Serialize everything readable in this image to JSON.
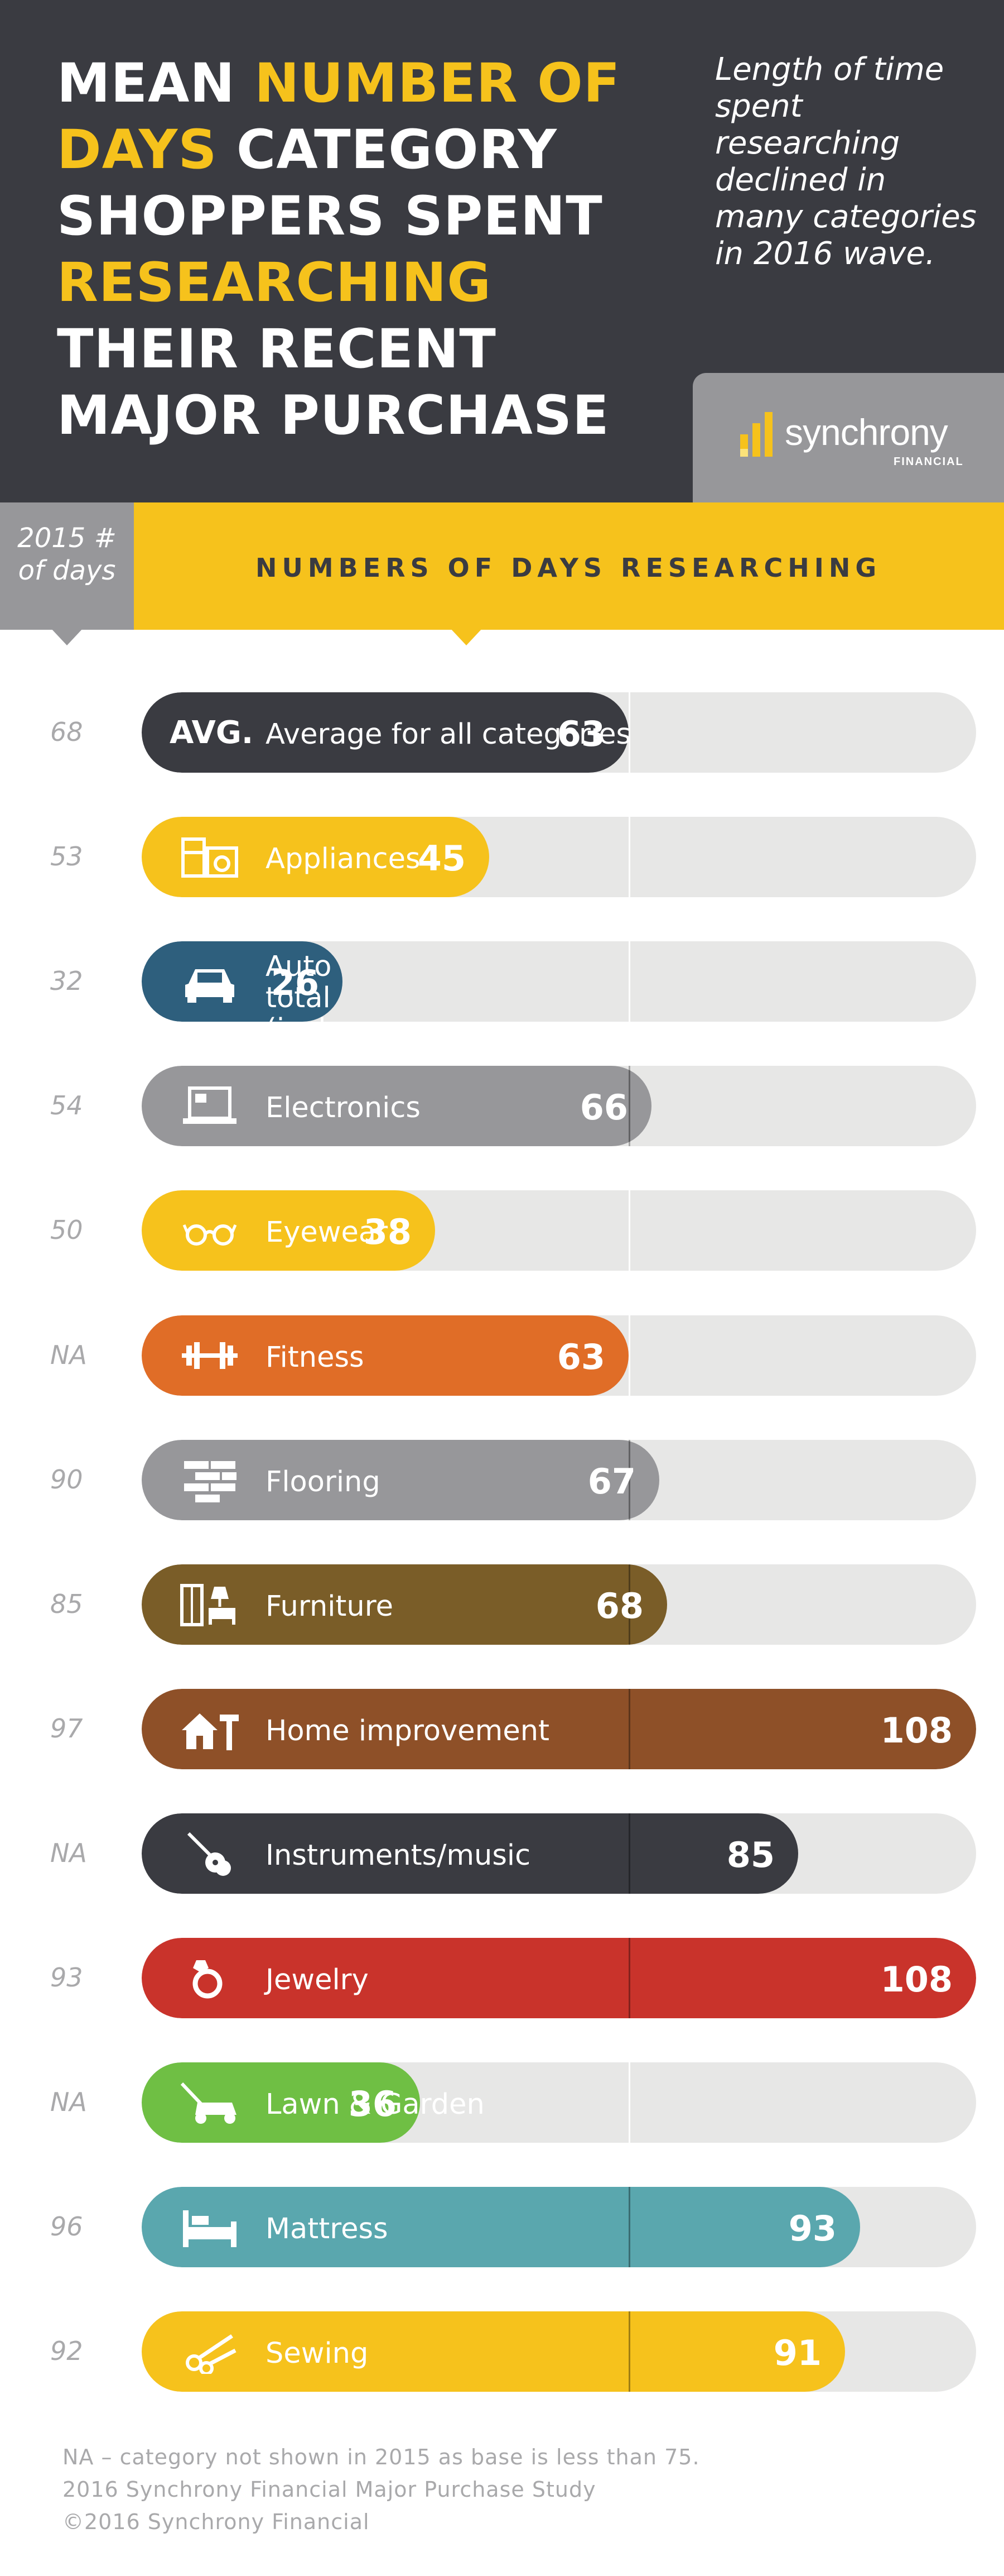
{
  "header": {
    "title_lines": [
      [
        {
          "text": "MEAN ",
          "hl": false
        },
        {
          "text": "NUMBER OF",
          "hl": true
        }
      ],
      [
        {
          "text": "DAYS",
          "hl": true
        },
        {
          "text": " CATEGORY",
          "hl": false
        }
      ],
      [
        {
          "text": "SHOPPERS SPENT",
          "hl": false
        }
      ],
      [
        {
          "text": "RESEARCHING",
          "hl": true
        }
      ],
      [
        {
          "text": "THEIR RECENT",
          "hl": false
        }
      ],
      [
        {
          "text": "MAJOR PURCHASE",
          "hl": false
        }
      ]
    ],
    "subtitle": "Length of time spent researching declined in many categories in 2016 wave.",
    "logo_text": "synchrony",
    "logo_subtext": "FINANCIAL"
  },
  "column_header": {
    "prev_label": "2015 # of days",
    "band_label": "NUMBERS OF DAYS RESEARCHING"
  },
  "colors": {
    "header_bg": "#3a3b41",
    "accent_yellow": "#f6c21c",
    "grey": "#97979a",
    "track": "#e7e7e6"
  },
  "chart_data": {
    "type": "bar",
    "orientation": "horizontal",
    "title": "MEAN NUMBER OF DAYS CATEGORY SHOPPERS SPENT RESEARCHING THEIR RECENT MAJOR PURCHASE",
    "xlabel": "NUMBERS OF DAYS RESEARCHING",
    "xlim": [
      0,
      108
    ],
    "reference_value": 63,
    "categories": [
      "Average for all categories",
      "Appliances",
      "Auto total\n(incl. parts)",
      "Electronics",
      "Eyewear",
      "Fitness",
      "Flooring",
      "Furniture",
      "Home improvement",
      "Instruments/music",
      "Jewelry",
      "Lawn & Garden",
      "Mattress",
      "Sewing"
    ],
    "series": [
      {
        "name": "2016",
        "values": [
          63,
          45,
          26,
          66,
          38,
          63,
          67,
          68,
          108,
          85,
          108,
          36,
          93,
          91
        ]
      }
    ],
    "values_2015": [
      "68",
      "53",
      "32",
      "54",
      "50",
      "NA",
      "90",
      "85",
      "97",
      "NA",
      "93",
      "NA",
      "96",
      "92"
    ],
    "bar_colors": [
      "#3a3b41",
      "#f6c21c",
      "#2e5f7d",
      "#97979a",
      "#f6c21c",
      "#e06d27",
      "#97979a",
      "#7a5d28",
      "#8e5028",
      "#3a3b41",
      "#c9332b",
      "#6fbf44",
      "#5aa7ae",
      "#f6c21c"
    ],
    "icons": [
      "avg-text",
      "appliance-icon",
      "car-icon",
      "laptop-icon",
      "glasses-icon",
      "dumbbell-icon",
      "bricks-icon",
      "furniture-icon",
      "house-hammer-icon",
      "guitar-icon",
      "ring-icon",
      "lawnmower-icon",
      "bed-icon",
      "scissors-icon"
    ],
    "avg_badge": "AVG."
  },
  "footnote": [
    "NA – category not shown in 2015 as base is less than 75.",
    "2016 Synchrony Financial Major Purchase Study",
    "©2016 Synchrony Financial"
  ]
}
